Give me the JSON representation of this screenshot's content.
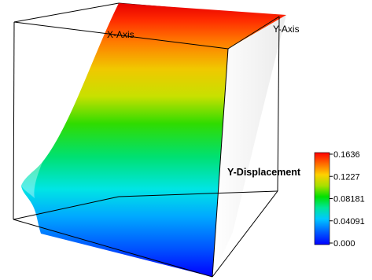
{
  "scene": {
    "x_axis_label": "X-Axis",
    "y_axis_label": "Y-Axis",
    "background": "#ffffff",
    "box_color": "#000000"
  },
  "color_legend": {
    "title": "Y-Displacement",
    "range": [
      0.0,
      0.1636
    ],
    "ticks": [
      "0.1636",
      "0.1227",
      "0.08181",
      "0.04091",
      "0.000"
    ],
    "colormap": [
      "#0000ff",
      "#00a0ff",
      "#00e5e5",
      "#00e060",
      "#40e000",
      "#d8e000",
      "#ff9000",
      "#ff2000",
      "#ff0000"
    ]
  }
}
